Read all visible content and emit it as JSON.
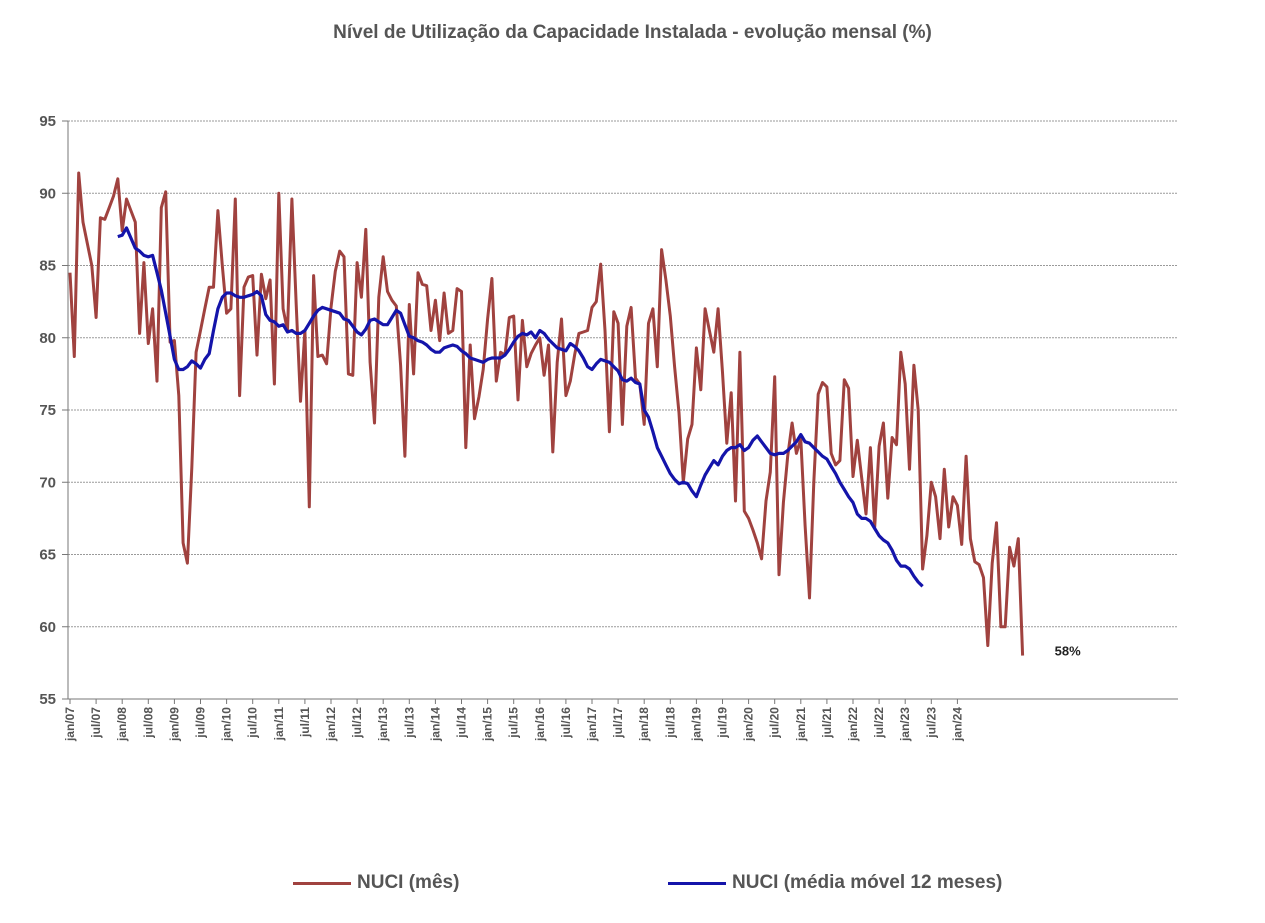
{
  "chart_data": {
    "type": "line",
    "title": "Nível de Utilização da Capacidade Instalada - evolução mensal (%)",
    "ylim": [
      55,
      95
    ],
    "yticks": [
      95,
      90,
      85,
      80,
      75,
      70,
      65,
      60,
      55
    ],
    "grid": true,
    "legend_position": "bottom",
    "x_tick_labels": [
      "jan/07",
      "jul/07",
      "jan/08",
      "jul/08",
      "jan/09",
      "jul/09",
      "jan/10",
      "jul/10",
      "jan/11",
      "jul/11",
      "jan/12",
      "jul/12",
      "jan/13",
      "jul/13",
      "jan/14",
      "jul/14",
      "jan/15",
      "jul/15",
      "jan/16",
      "jul/16",
      "jan/17",
      "jul/17",
      "jan/18",
      "jul/18",
      "jan/19",
      "jul/19",
      "jan/20",
      "jul/20",
      "jan/21",
      "jul/21",
      "jan/22",
      "jul/22",
      "jan/23",
      "jul/23",
      "jan/24"
    ],
    "x_start": "jan/07",
    "end_label": "58%",
    "series": [
      {
        "name": "NUCI (mês)",
        "color": "#A0423F",
        "values": [
          84.5,
          78.7,
          91.4,
          88.0,
          86.5,
          85.0,
          81.4,
          88.3,
          88.2,
          89.0,
          89.8,
          91.0,
          87.4,
          89.6,
          88.8,
          88.0,
          80.3,
          85.2,
          79.6,
          82.0,
          77.0,
          89.0,
          90.1,
          79.7,
          79.8,
          76.0,
          65.8,
          64.4,
          71.0,
          79.0,
          80.5,
          82.0,
          83.5,
          83.5,
          88.8,
          85.0,
          81.7,
          82.0,
          89.6,
          76.0,
          83.5,
          84.2,
          84.3,
          78.8,
          84.4,
          82.7,
          84.0,
          76.8,
          90.0,
          82.0,
          80.5,
          89.6,
          82.3,
          75.6,
          80.5,
          68.3,
          84.3,
          78.7,
          78.8,
          78.2,
          82.1,
          84.6,
          86.0,
          85.6,
          77.5,
          77.4,
          85.2,
          82.8,
          87.5,
          78.3,
          74.1,
          82.8,
          85.6,
          83.2,
          82.6,
          82.2,
          78.1,
          71.8,
          82.3,
          77.5,
          84.5,
          83.7,
          83.6,
          80.5,
          82.6,
          79.8,
          83.1,
          80.3,
          80.5,
          83.4,
          83.2,
          72.4,
          79.5,
          74.4,
          75.9,
          77.8,
          81.3,
          84.1,
          77.0,
          79.0,
          78.8,
          81.4,
          81.5,
          75.7,
          81.2,
          78.0,
          78.9,
          79.5,
          80.0,
          77.4,
          79.5,
          72.1,
          78.3,
          81.3,
          76.0,
          77.0,
          78.8,
          80.3,
          80.4,
          80.5,
          82.1,
          82.5,
          85.1,
          80.5,
          73.5,
          81.8,
          81.0,
          74.0,
          80.8,
          82.1,
          77.2,
          76.8,
          74.0,
          81.0,
          82.0,
          78.0,
          86.1,
          84.0,
          81.5,
          78.0,
          74.8,
          70.0,
          73.0,
          74.0,
          79.3,
          76.4,
          82.0,
          80.5,
          79.0,
          82.0,
          77.6,
          72.7,
          76.2,
          68.7,
          79.0,
          68.0,
          67.5,
          66.7,
          65.8,
          64.7,
          68.7,
          70.7,
          77.3,
          63.6,
          68.6,
          71.8,
          74.1,
          72.0,
          73.0,
          67.0,
          62.0,
          70.0,
          76.1,
          76.9,
          76.6,
          72.0,
          71.2,
          71.5,
          77.1,
          76.5,
          70.4,
          72.9,
          70.3,
          67.8,
          72.4,
          66.9,
          72.5,
          74.1,
          68.9,
          73.1,
          72.6,
          79.0,
          76.8,
          70.9,
          78.1,
          75.0,
          64.0,
          66.3,
          70.0,
          69.0,
          66.1,
          70.9,
          66.9,
          69.0,
          68.4,
          65.7,
          71.8,
          66.1,
          64.5,
          64.3,
          63.4,
          58.7,
          64.4,
          67.2,
          60.0,
          60.0,
          65.5,
          64.2,
          66.1,
          58.0
        ]
      },
      {
        "name": "NUCI (média móvel 12 meses)",
        "color": "#1414AA",
        "values": [
          null,
          null,
          null,
          null,
          null,
          null,
          null,
          null,
          null,
          null,
          null,
          87.0,
          87.1,
          87.6,
          86.9,
          86.2,
          86.0,
          85.7,
          85.6,
          85.7,
          84.5,
          83.3,
          81.7,
          80.1,
          78.5,
          77.8,
          77.8,
          78.0,
          78.4,
          78.2,
          77.9,
          78.5,
          78.9,
          80.5,
          82.0,
          82.8,
          83.1,
          83.1,
          82.9,
          82.8,
          82.8,
          82.9,
          83.0,
          83.2,
          82.9,
          81.6,
          81.2,
          81.1,
          80.8,
          80.9,
          80.4,
          80.5,
          80.3,
          80.3,
          80.5,
          81.0,
          81.5,
          81.9,
          82.1,
          82.0,
          81.9,
          81.8,
          81.7,
          81.3,
          81.2,
          80.8,
          80.4,
          80.2,
          80.6,
          81.2,
          81.3,
          81.1,
          80.9,
          80.9,
          81.4,
          81.9,
          81.7,
          80.9,
          80.1,
          80.0,
          79.8,
          79.7,
          79.5,
          79.2,
          79.0,
          79.0,
          79.3,
          79.4,
          79.5,
          79.4,
          79.1,
          78.9,
          78.6,
          78.5,
          78.4,
          78.3,
          78.5,
          78.6,
          78.6,
          78.6,
          78.8,
          79.2,
          79.7,
          80.1,
          80.3,
          80.2,
          80.4,
          80.0,
          80.5,
          80.3,
          79.9,
          79.6,
          79.3,
          79.2,
          79.1,
          79.6,
          79.4,
          79.1,
          78.6,
          78.0,
          77.8,
          78.2,
          78.5,
          78.4,
          78.3,
          78.0,
          77.7,
          77.1,
          77.0,
          77.2,
          76.9,
          76.8,
          75.0,
          74.5,
          73.5,
          72.4,
          71.8,
          71.2,
          70.6,
          70.2,
          69.9,
          70.0,
          69.9,
          69.4,
          69.0,
          69.8,
          70.5,
          71.0,
          71.5,
          71.2,
          71.8,
          72.2,
          72.4,
          72.4,
          72.6,
          72.2,
          72.4,
          72.9,
          73.2,
          72.8,
          72.4,
          72.0,
          71.9,
          72.0,
          72.0,
          72.2,
          72.5,
          72.8,
          73.3,
          72.8,
          72.7,
          72.4,
          72.1,
          71.8,
          71.6,
          71.1,
          70.6,
          70.0,
          69.5,
          69.0,
          68.6,
          67.8,
          67.5,
          67.5,
          67.3,
          66.8,
          66.3,
          66.0,
          65.8,
          65.3,
          64.6,
          64.2,
          64.2,
          64.0,
          63.5,
          63.1,
          62.8
        ]
      }
    ]
  }
}
